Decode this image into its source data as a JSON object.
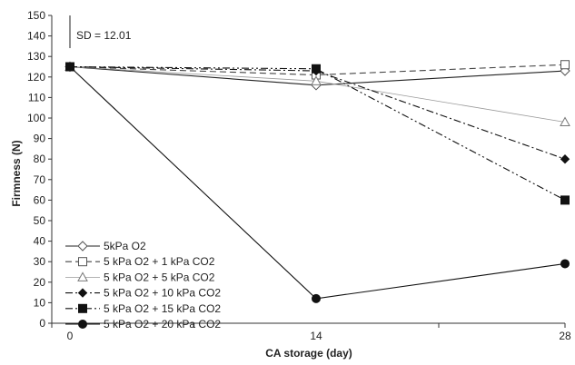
{
  "chart_data": {
    "type": "line",
    "xlabel": "CA storage (day)",
    "ylabel": "Firmness (N)",
    "x": [
      0,
      14,
      28
    ],
    "x_tick_labels": [
      "0",
      "14",
      "28"
    ],
    "ylim": [
      0,
      150
    ],
    "y_ticks": [
      0,
      10,
      20,
      30,
      40,
      50,
      60,
      70,
      80,
      90,
      100,
      110,
      120,
      130,
      140,
      150
    ],
    "grid": false,
    "legend_position": "bottom-left",
    "annotation": "SD = 12.01",
    "series": [
      {
        "name": "5kPa O2",
        "values": [
          125,
          116,
          123
        ],
        "marker": "diamond-open",
        "line": "solid",
        "color": "#222222"
      },
      {
        "name": "5 kPa O2 + 1 kPa CO2",
        "values": [
          125,
          121,
          126
        ],
        "marker": "square-open",
        "line": "dashed",
        "color": "#444444"
      },
      {
        "name": "5 kPa O2 + 5 kPa CO2",
        "values": [
          125,
          118,
          98
        ],
        "marker": "triangle-open",
        "line": "solid-thin",
        "color": "#999999"
      },
      {
        "name": "5 kPa O2 + 10 kPa CO2",
        "values": [
          125,
          123,
          80
        ],
        "marker": "diamond-filled",
        "line": "dash-dot",
        "color": "#111111"
      },
      {
        "name": "5 kPa O2 + 15 kPa CO2",
        "values": [
          125,
          124,
          60
        ],
        "marker": "square-filled",
        "line": "dash-dot-dot",
        "color": "#111111"
      },
      {
        "name": "5 kPa O2 + 20 kPa CO2",
        "values": [
          125,
          12,
          29
        ],
        "marker": "circle-filled",
        "line": "solid",
        "color": "#111111"
      }
    ]
  }
}
